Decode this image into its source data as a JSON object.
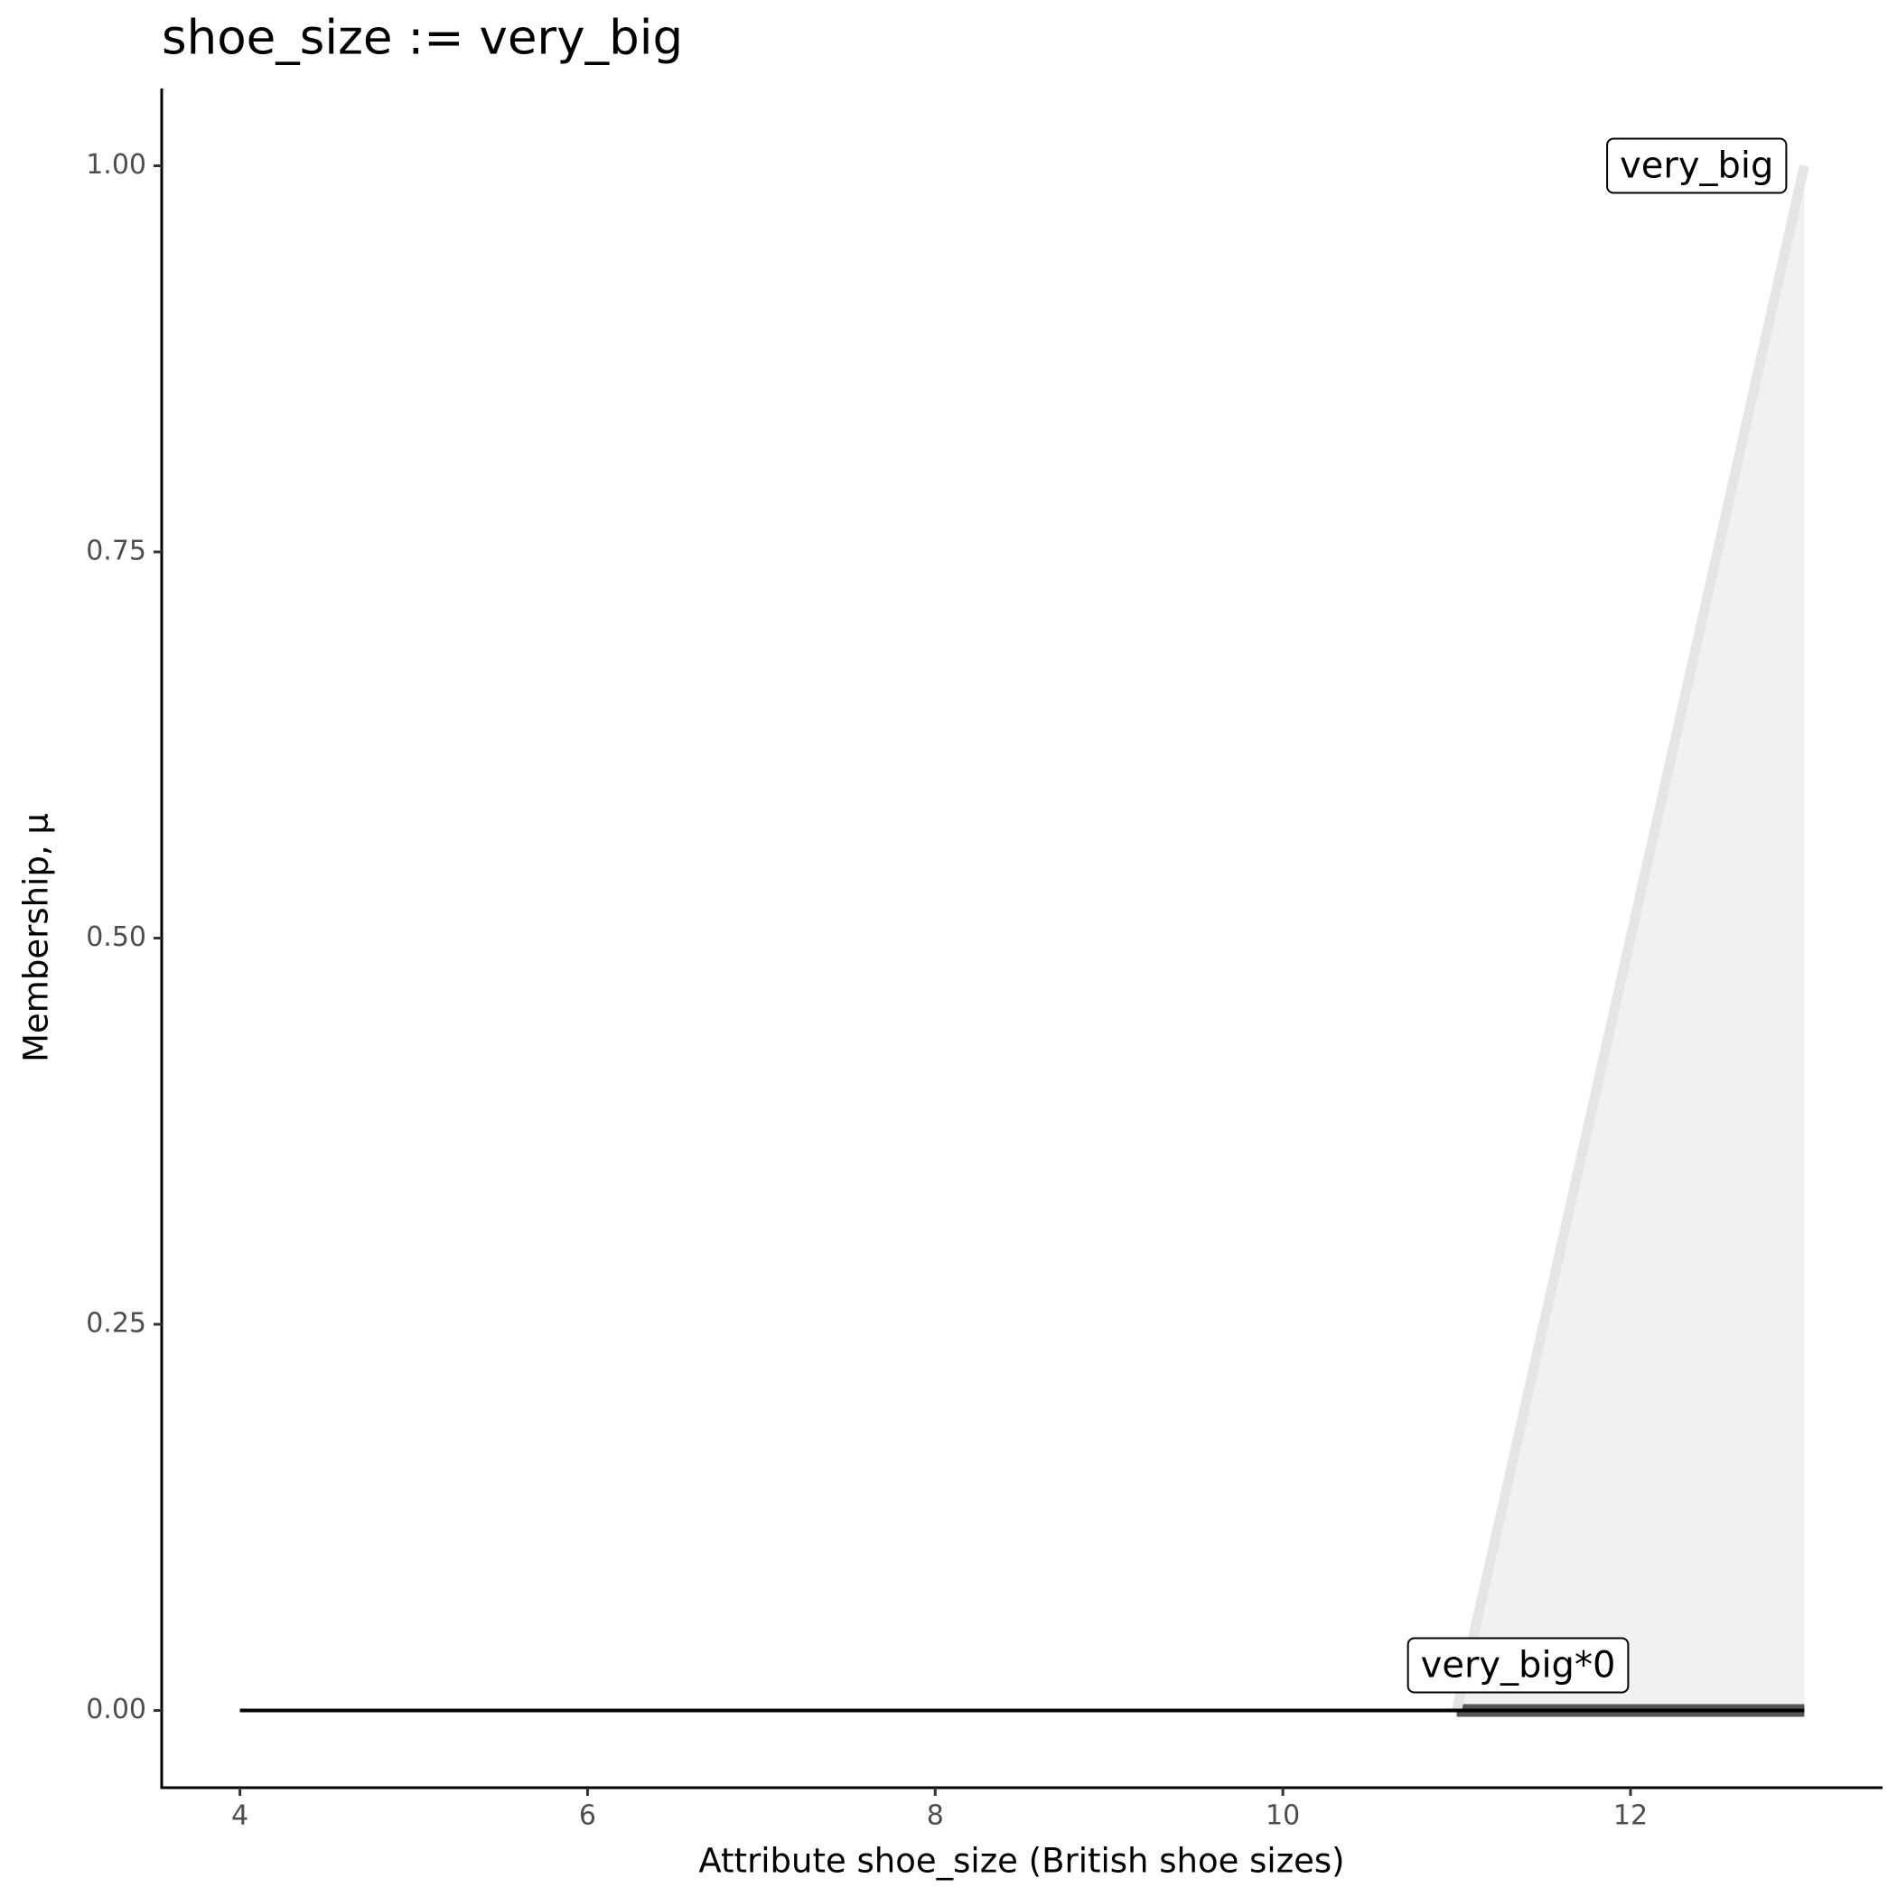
{
  "chart_data": {
    "type": "line",
    "title": "shoe_size := very_big",
    "x_label": "Attribute shoe_size (British shoe sizes)",
    "y_label": "Membership, μ",
    "series": [
      {
        "name": "very_big",
        "color": "#e5e5e5",
        "x": [
          11,
          13
        ],
        "values": [
          0,
          1
        ]
      },
      {
        "name": "very_big*0",
        "color": "#000000",
        "x": [
          4,
          13
        ],
        "values": [
          0,
          0
        ]
      }
    ],
    "xlim": [
      3.55,
      13.45
    ],
    "ylim": [
      -0.05,
      1.05
    ],
    "xticks": [
      4,
      6,
      8,
      10,
      12
    ],
    "yticks": [
      {
        "value": 0,
        "label": "0.00"
      },
      {
        "value": 0.25,
        "label": "0.25"
      },
      {
        "value": 0.5,
        "label": "0.50"
      },
      {
        "value": 0.75,
        "label": "0.75"
      },
      {
        "value": 1,
        "label": "1.00"
      }
    ],
    "grid": false
  }
}
